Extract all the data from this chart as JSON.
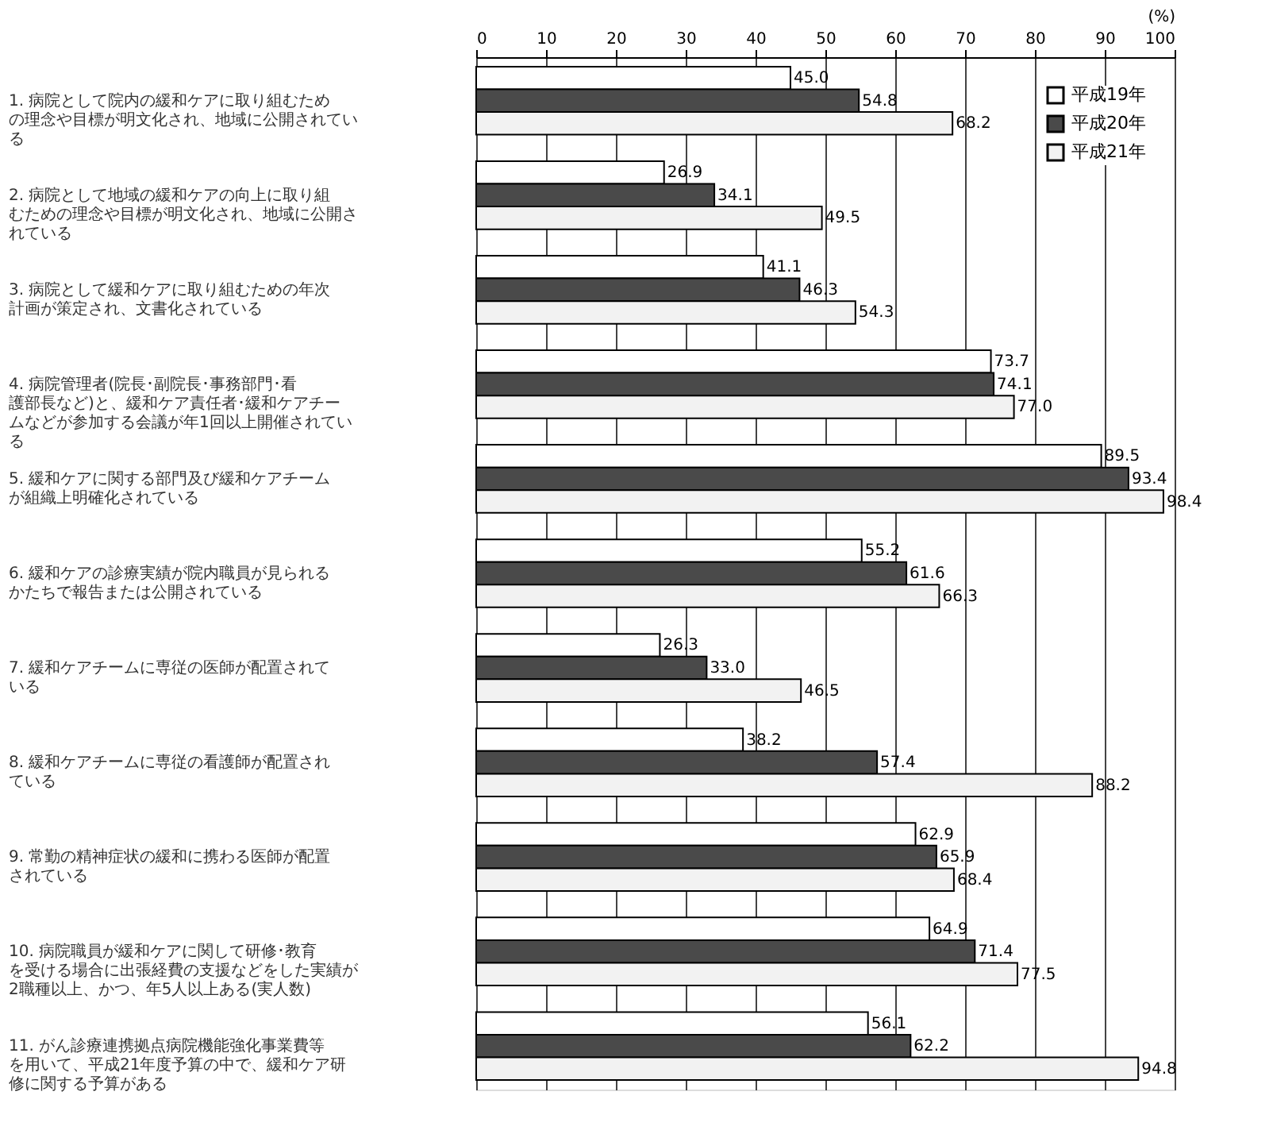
{
  "chart_data": {
    "type": "bar",
    "orientation": "horizontal",
    "xlabel": "(%)",
    "categories": [
      "1. 病院として院内の緩和ケアに取り組むための理念や目標が明文化され、地域に公開されている",
      "2. 病院として地域の緩和ケアの向上に取り組むための理念や目標が明文化され、地域に公開されている",
      "3. 病院として緩和ケアに取り組むための年次計画が策定され、文書化されている",
      "4. 病院管理者(院長･副院長･事務部門･看護部長など)と、緩和ケア責任者･緩和ケアチームなどが参加する会議が年1回以上開催されている",
      "5. 緩和ケアに関する部門及び緩和ケアチームが組織上明確化されている",
      "6. 緩和ケアの診療実績が院内職員が見られるかたちで報告または公開されている",
      "7. 緩和ケアチームに専従の医師が配置されている",
      "8. 緩和ケアチームに専従の看護師が配置されている",
      "9. 常勤の精神症状の緩和に携わる医師が配置されている",
      "10. 病院職員が緩和ケアに関して研修･教育を受ける場合に出張経費の支援などをした実績が2職種以上、かつ、年5人以上ある(実人数)",
      "11. がん診療連携拠点病院機能強化事業費等を用いて、平成21年度予算の中で、緩和ケア研修に関する予算がある"
    ],
    "series": [
      {
        "name": "平成19年",
        "color": "#ffffff",
        "values": [
          45.0,
          26.9,
          41.1,
          73.7,
          89.5,
          55.2,
          26.3,
          38.2,
          62.9,
          64.9,
          56.1
        ],
        "value_labels": [
          "45.0",
          "26.9",
          "41.1",
          "73.7",
          "89.5",
          "55.2",
          "26.3",
          "38.2",
          "62.9",
          "64.9",
          "56.1"
        ]
      },
      {
        "name": "平成20年",
        "color": "#4a4a4a",
        "values": [
          54.8,
          34.1,
          46.3,
          74.1,
          93.4,
          61.6,
          33.0,
          57.4,
          65.9,
          71.4,
          62.2
        ],
        "value_labels": [
          "54.8",
          "34.1",
          "46.3",
          "74.1",
          "93.4",
          "61.6",
          "33.0",
          "57.4",
          "65.9",
          "71.4",
          "62.2"
        ]
      },
      {
        "name": "平成21年",
        "color": "#f2f2f2",
        "values": [
          68.2,
          49.5,
          54.3,
          77.0,
          98.4,
          66.3,
          46.5,
          88.2,
          68.4,
          77.5,
          94.8
        ],
        "value_labels": [
          "68.2",
          "49.5",
          "54.3",
          "77.0",
          "98.4",
          "66.3",
          "46.5",
          "88.2",
          "68.4",
          "77.5",
          "94.8"
        ]
      }
    ],
    "xlim": [
      0,
      100
    ],
    "xticks": [
      0,
      10,
      20,
      30,
      40,
      50,
      60,
      70,
      80,
      90,
      100
    ],
    "grid": "x",
    "legend": "top right"
  }
}
